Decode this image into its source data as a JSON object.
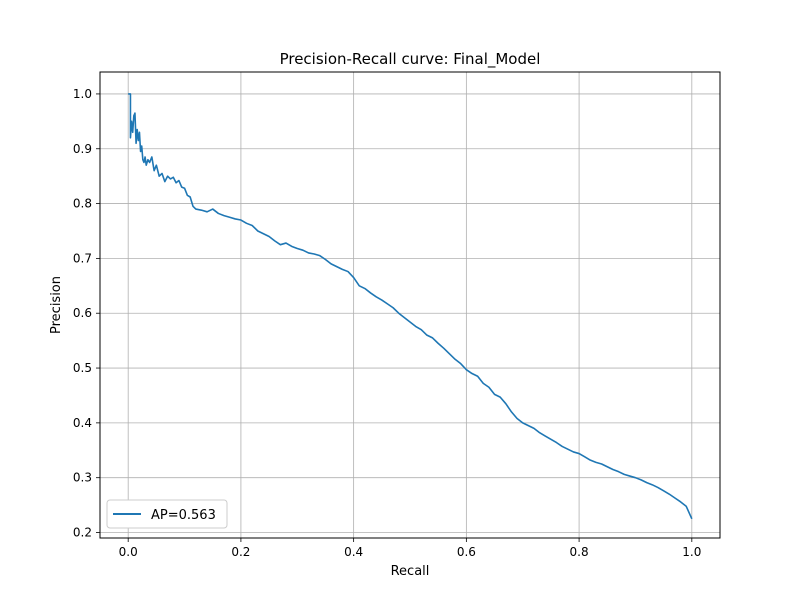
{
  "chart_data": {
    "type": "line",
    "title": "Precision-Recall curve: Final_Model",
    "xlabel": "Recall",
    "ylabel": "Precision",
    "xlim": [
      -0.05,
      1.05
    ],
    "ylim": [
      0.19,
      1.04
    ],
    "x_ticks": [
      0.0,
      0.2,
      0.4,
      0.6,
      0.8,
      1.0
    ],
    "x_tick_labels": [
      "0.0",
      "0.2",
      "0.4",
      "0.6",
      "0.8",
      "1.0"
    ],
    "y_ticks": [
      0.2,
      0.3,
      0.4,
      0.5,
      0.6,
      0.7,
      0.8,
      0.9,
      1.0
    ],
    "y_tick_labels": [
      "0.2",
      "0.3",
      "0.4",
      "0.5",
      "0.6",
      "0.7",
      "0.8",
      "0.9",
      "1.0"
    ],
    "grid": true,
    "legend_position": "lower-left",
    "series": [
      {
        "name": "AP=0.563",
        "color": "#1f77b4",
        "x": [
          0.0,
          0.004,
          0.004,
          0.006,
          0.008,
          0.01,
          0.012,
          0.014,
          0.016,
          0.018,
          0.02,
          0.022,
          0.024,
          0.026,
          0.028,
          0.03,
          0.032,
          0.035,
          0.038,
          0.042,
          0.046,
          0.05,
          0.055,
          0.06,
          0.065,
          0.07,
          0.075,
          0.08,
          0.085,
          0.09,
          0.095,
          0.1,
          0.105,
          0.11,
          0.115,
          0.12,
          0.13,
          0.14,
          0.15,
          0.16,
          0.17,
          0.18,
          0.19,
          0.2,
          0.21,
          0.22,
          0.23,
          0.24,
          0.25,
          0.26,
          0.27,
          0.28,
          0.29,
          0.3,
          0.31,
          0.32,
          0.33,
          0.34,
          0.35,
          0.36,
          0.37,
          0.38,
          0.39,
          0.4,
          0.41,
          0.42,
          0.43,
          0.44,
          0.45,
          0.46,
          0.47,
          0.48,
          0.49,
          0.5,
          0.51,
          0.52,
          0.53,
          0.54,
          0.55,
          0.56,
          0.57,
          0.58,
          0.59,
          0.6,
          0.61,
          0.62,
          0.63,
          0.64,
          0.65,
          0.66,
          0.67,
          0.68,
          0.69,
          0.7,
          0.71,
          0.72,
          0.73,
          0.74,
          0.75,
          0.76,
          0.77,
          0.78,
          0.79,
          0.8,
          0.81,
          0.82,
          0.83,
          0.84,
          0.85,
          0.86,
          0.87,
          0.88,
          0.89,
          0.9,
          0.91,
          0.92,
          0.93,
          0.94,
          0.95,
          0.96,
          0.97,
          0.98,
          0.99,
          1.0
        ],
        "y": [
          1.0,
          1.0,
          0.92,
          0.95,
          0.93,
          0.96,
          0.965,
          0.91,
          0.935,
          0.915,
          0.93,
          0.895,
          0.905,
          0.88,
          0.875,
          0.885,
          0.87,
          0.88,
          0.875,
          0.885,
          0.86,
          0.87,
          0.85,
          0.855,
          0.84,
          0.85,
          0.845,
          0.848,
          0.838,
          0.842,
          0.83,
          0.828,
          0.815,
          0.812,
          0.795,
          0.79,
          0.788,
          0.785,
          0.79,
          0.782,
          0.778,
          0.775,
          0.772,
          0.77,
          0.764,
          0.76,
          0.75,
          0.745,
          0.74,
          0.732,
          0.725,
          0.728,
          0.722,
          0.718,
          0.715,
          0.71,
          0.708,
          0.705,
          0.698,
          0.69,
          0.685,
          0.68,
          0.676,
          0.665,
          0.65,
          0.645,
          0.637,
          0.63,
          0.624,
          0.617,
          0.61,
          0.6,
          0.592,
          0.584,
          0.576,
          0.57,
          0.56,
          0.555,
          0.545,
          0.536,
          0.526,
          0.516,
          0.508,
          0.497,
          0.49,
          0.485,
          0.472,
          0.465,
          0.452,
          0.447,
          0.435,
          0.42,
          0.408,
          0.4,
          0.395,
          0.39,
          0.382,
          0.376,
          0.37,
          0.364,
          0.357,
          0.352,
          0.347,
          0.344,
          0.338,
          0.332,
          0.328,
          0.325,
          0.32,
          0.315,
          0.311,
          0.306,
          0.303,
          0.3,
          0.296,
          0.291,
          0.287,
          0.282,
          0.276,
          0.27,
          0.263,
          0.256,
          0.248,
          0.225
        ]
      }
    ]
  }
}
